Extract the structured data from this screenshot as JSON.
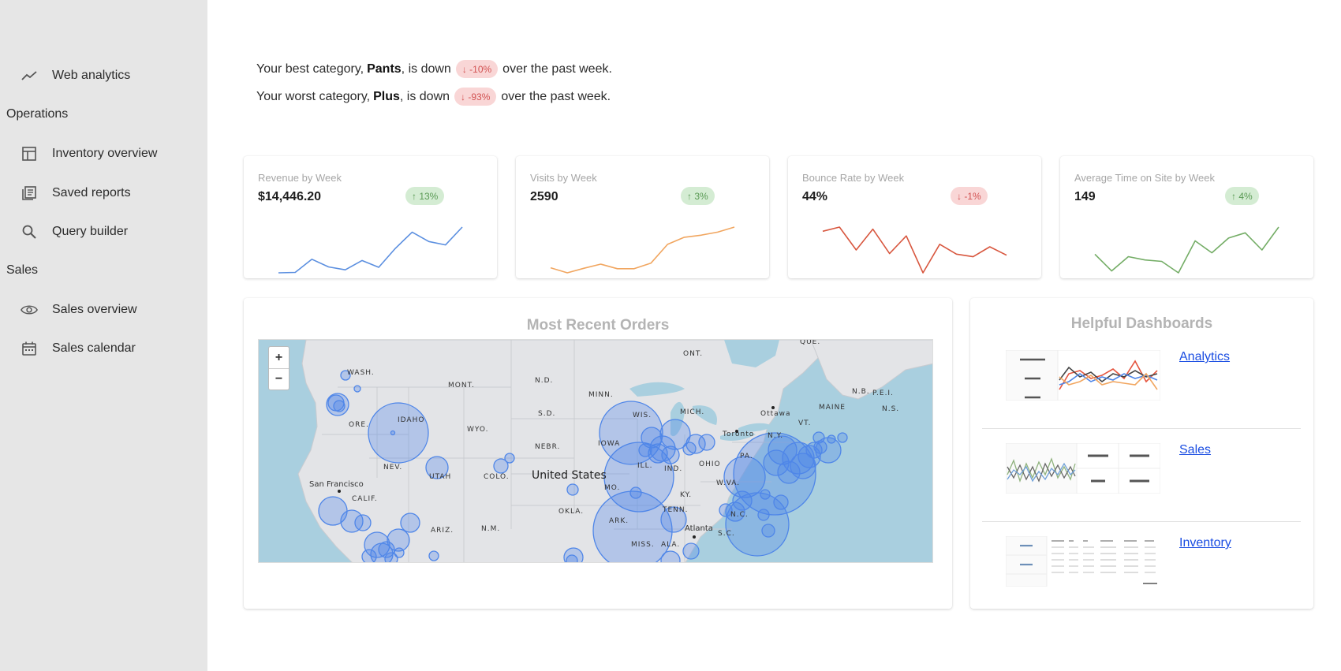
{
  "sidebar": {
    "items": [
      {
        "label": "Web analytics",
        "icon": "trending-line-icon"
      },
      {
        "section": "Operations"
      },
      {
        "label": "Inventory overview",
        "icon": "table-icon"
      },
      {
        "label": "Saved reports",
        "icon": "report-list-icon"
      },
      {
        "label": "Query builder",
        "icon": "search-icon"
      },
      {
        "section": "Sales"
      },
      {
        "label": "Sales overview",
        "icon": "eye-icon"
      },
      {
        "label": "Sales calendar",
        "icon": "calendar-icon"
      }
    ]
  },
  "summary": {
    "best": {
      "prefix": "Your best category,",
      "category": "Pants",
      "mid": ", is down",
      "change": "↓ -10%",
      "suffix": "over the past week."
    },
    "worst": {
      "prefix": "Your worst category,",
      "category": "Plus",
      "mid": ", is down",
      "change": "↓ -93%",
      "suffix": "over the past week."
    }
  },
  "kpis": [
    {
      "title": "Revenue by Week",
      "value": "$14,446.20",
      "change": "↑ 13%",
      "trend": "up",
      "color": "#5b8fe0",
      "series": [
        1,
        1.1,
        4.2,
        2.4,
        1.7,
        3.9,
        2.3,
        6.8,
        10.6,
        8.4,
        7.6,
        11.8
      ]
    },
    {
      "title": "Visits by Week",
      "value": "2590",
      "change": "↑ 3%",
      "trend": "up",
      "color": "#f1a660",
      "series": [
        2.6,
        1.6,
        2.5,
        3.3,
        2.4,
        2.4,
        3.5,
        7.2,
        8.6,
        9.0,
        9.6,
        10.6
      ]
    },
    {
      "title": "Bounce Rate by Week",
      "value": "44%",
      "change": "↓ -1%",
      "trend": "down",
      "color": "#d8573f",
      "series": [
        9.4,
        10.2,
        5.8,
        9.8,
        5.1,
        8.5,
        1.4,
        6.9,
        5.0,
        4.5,
        6.4,
        4.8
      ]
    },
    {
      "title": "Average Time on Site by Week",
      "value": "149",
      "change": "↑ 4%",
      "trend": "up",
      "color": "#74ad66",
      "series": [
        5.5,
        2.0,
        5.0,
        4.3,
        4.0,
        1.6,
        8.3,
        5.8,
        8.9,
        10.0,
        6.4,
        11.2
      ]
    }
  ],
  "orders": {
    "title": "Most Recent Orders",
    "zoom_in": "+",
    "zoom_out": "−",
    "labels": [
      "WASH.",
      "MONT.",
      "N.D.",
      "MINN.",
      "ONT.",
      "QUE.",
      "IDAHO",
      "ORE.",
      "WYO.",
      "S.D.",
      "WIS.",
      "MICH.",
      "Ottawa",
      "MAINE",
      "N.B.",
      "P.E.I.",
      "N.S.",
      "VT.",
      "Toronto",
      "N.Y.",
      "NEBR.",
      "IOWA",
      "PA.",
      "NEV.",
      "UTAH",
      "COLO.",
      "United States",
      "ILL.",
      "IND.",
      "OHIO",
      "W.VA.",
      "San Francisco",
      "CALIF.",
      "MO.",
      "KY.",
      "OKLA.",
      "TENN.",
      "ARK.",
      "N.C.",
      "ARIZ.",
      "N.M.",
      "MISS.",
      "ALA.",
      "S.C.",
      "Atlanta"
    ]
  },
  "dashboards": {
    "title": "Helpful Dashboards",
    "items": [
      {
        "label": "Analytics"
      },
      {
        "label": "Sales"
      },
      {
        "label": "Inventory"
      }
    ]
  },
  "colors": {
    "sidebar_bg": "#e6e6e6",
    "link": "#1a4de2",
    "bubble": "#4f86e8",
    "water": "#a9cfdf",
    "land": "#e3e4e7"
  }
}
